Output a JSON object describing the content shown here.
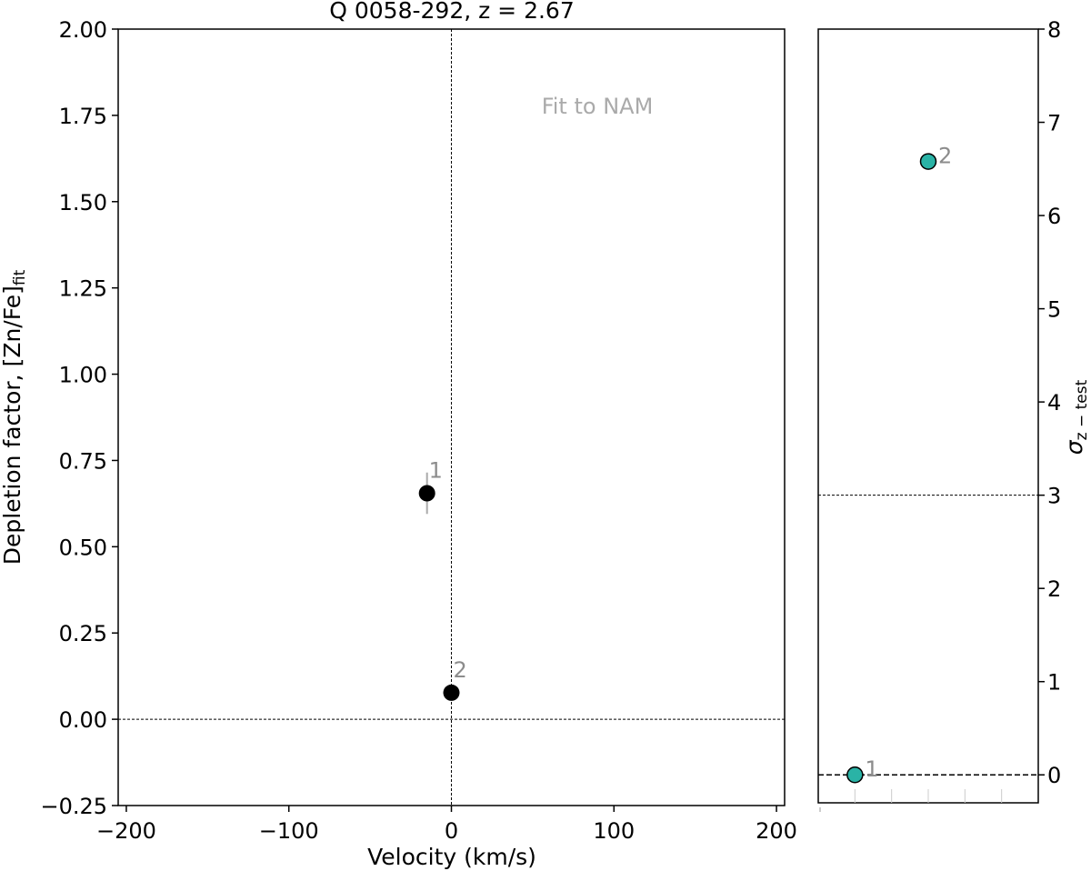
{
  "chart_data": [
    {
      "type": "scatter",
      "title": "Q 0058-292, z = 2.67",
      "xlabel": "Velocity (km/s)",
      "ylabel": "Depletion factor, [Zn/Fe]",
      "ylabel_sub": "fit",
      "annotation": "Fit to NAM",
      "xlim": [
        -205,
        205
      ],
      "ylim": [
        -0.25,
        2.0
      ],
      "xticks": [
        -200,
        -100,
        0,
        100,
        200
      ],
      "xtick_labels": [
        "−200",
        "−100",
        "0",
        "100",
        "200"
      ],
      "yticks": [
        -0.25,
        0.0,
        0.25,
        0.5,
        0.75,
        1.0,
        1.25,
        1.5,
        1.75,
        2.0
      ],
      "ytick_labels": [
        "−0.25",
        "0.00",
        "0.25",
        "0.50",
        "0.75",
        "1.00",
        "1.25",
        "1.50",
        "1.75",
        "2.00"
      ],
      "grid": false,
      "reference_lines": {
        "horizontal": 0.0,
        "vertical": 0
      },
      "marker_color": "#000000",
      "errorbar_color": "#aaaaaa",
      "label_color": "#8c8c8c",
      "points": [
        {
          "label": "1",
          "x": -15,
          "y": 0.655,
          "yerr": 0.06
        },
        {
          "label": "2",
          "x": 0,
          "y": 0.077,
          "yerr": 0.0
        }
      ]
    },
    {
      "type": "scatter",
      "ylabel": "σ",
      "ylabel_sub": "z − test",
      "ylim": [
        -0.3,
        8.0
      ],
      "yticks": [
        0,
        1,
        2,
        3,
        4,
        5,
        6,
        7,
        8
      ],
      "ytick_labels": [
        "0",
        "1",
        "2",
        "3",
        "4",
        "5",
        "6",
        "7",
        "8"
      ],
      "y_axis_side": "right",
      "grid": false,
      "reference_lines": {
        "threshold": 3,
        "zero": 0
      },
      "marker_color": "#2ab3a6",
      "label_color": "#8c8c8c",
      "points": [
        {
          "label": "1",
          "value": 0.0
        },
        {
          "label": "2",
          "value": 6.58
        }
      ]
    }
  ]
}
